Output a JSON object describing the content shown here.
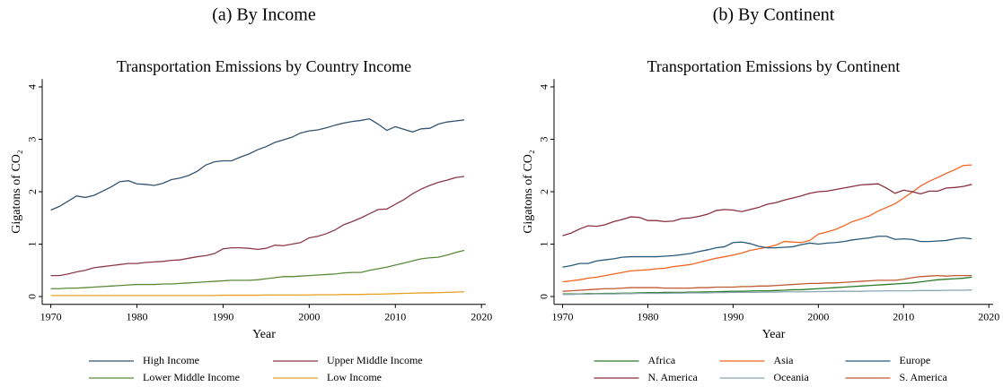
{
  "chart_data": [
    {
      "type": "line",
      "caption": "(a) By Income",
      "title": "Transportation Emissions by Country Income",
      "xlabel": "Year",
      "ylabel": "Gigatons of CO₂",
      "x": [
        1970,
        1971,
        1972,
        1973,
        1974,
        1975,
        1976,
        1977,
        1978,
        1979,
        1980,
        1981,
        1982,
        1983,
        1984,
        1985,
        1986,
        1987,
        1988,
        1989,
        1990,
        1991,
        1992,
        1993,
        1994,
        1995,
        1996,
        1997,
        1998,
        1999,
        2000,
        2001,
        2002,
        2003,
        2004,
        2005,
        2006,
        2007,
        2008,
        2009,
        2010,
        2011,
        2012,
        2013,
        2014,
        2015,
        2016,
        2017,
        2018
      ],
      "xlim": [
        1969,
        2020.5
      ],
      "xticks": [
        1970,
        1980,
        1990,
        2000,
        2010,
        2020
      ],
      "ylim": [
        -0.15,
        4.15
      ],
      "yticks": [
        0,
        1,
        2,
        3,
        4
      ],
      "grid": false,
      "legend": "bottom",
      "series": [
        {
          "name": "High Income",
          "color": "#34536e",
          "values": [
            1.65,
            1.72,
            1.82,
            1.92,
            1.89,
            1.93,
            2.01,
            2.09,
            2.19,
            2.21,
            2.15,
            2.14,
            2.12,
            2.16,
            2.23,
            2.26,
            2.31,
            2.39,
            2.51,
            2.57,
            2.59,
            2.59,
            2.66,
            2.72,
            2.8,
            2.86,
            2.94,
            2.99,
            3.04,
            3.12,
            3.16,
            3.18,
            3.22,
            3.27,
            3.31,
            3.34,
            3.36,
            3.39,
            3.29,
            3.17,
            3.24,
            3.19,
            3.14,
            3.2,
            3.21,
            3.29,
            3.33,
            3.35,
            3.37
          ]
        },
        {
          "name": "Upper Middle Income",
          "color": "#8c3a4a",
          "values": [
            0.4,
            0.4,
            0.43,
            0.47,
            0.5,
            0.55,
            0.57,
            0.59,
            0.61,
            0.63,
            0.63,
            0.65,
            0.66,
            0.67,
            0.69,
            0.7,
            0.73,
            0.76,
            0.78,
            0.82,
            0.91,
            0.93,
            0.93,
            0.92,
            0.9,
            0.92,
            0.98,
            0.97,
            1.0,
            1.03,
            1.12,
            1.15,
            1.2,
            1.27,
            1.37,
            1.43,
            1.5,
            1.58,
            1.66,
            1.67,
            1.76,
            1.85,
            1.96,
            2.05,
            2.12,
            2.18,
            2.22,
            2.27,
            2.29
          ]
        },
        {
          "name": "Lower Middle Income",
          "color": "#5a8a3a",
          "values": [
            0.15,
            0.15,
            0.16,
            0.16,
            0.17,
            0.18,
            0.19,
            0.2,
            0.21,
            0.22,
            0.23,
            0.23,
            0.23,
            0.24,
            0.24,
            0.25,
            0.26,
            0.27,
            0.28,
            0.29,
            0.3,
            0.31,
            0.31,
            0.31,
            0.32,
            0.34,
            0.36,
            0.38,
            0.38,
            0.39,
            0.4,
            0.41,
            0.42,
            0.43,
            0.45,
            0.46,
            0.46,
            0.5,
            0.53,
            0.56,
            0.6,
            0.64,
            0.68,
            0.72,
            0.74,
            0.75,
            0.79,
            0.84,
            0.88
          ]
        },
        {
          "name": "Low Income",
          "color": "#e8a020",
          "values": [
            0.02,
            0.02,
            0.02,
            0.02,
            0.02,
            0.02,
            0.02,
            0.02,
            0.02,
            0.02,
            0.02,
            0.02,
            0.02,
            0.02,
            0.02,
            0.02,
            0.02,
            0.02,
            0.02,
            0.02,
            0.025,
            0.025,
            0.025,
            0.025,
            0.025,
            0.03,
            0.03,
            0.03,
            0.03,
            0.03,
            0.03,
            0.035,
            0.035,
            0.035,
            0.04,
            0.04,
            0.04,
            0.045,
            0.045,
            0.05,
            0.055,
            0.06,
            0.065,
            0.07,
            0.07,
            0.075,
            0.08,
            0.085,
            0.09
          ]
        }
      ]
    },
    {
      "type": "line",
      "caption": "(b) By Continent",
      "title": "Transportation Emissions by Continent",
      "xlabel": "Year",
      "ylabel": "Gigatons of CO₂",
      "x": [
        1970,
        1971,
        1972,
        1973,
        1974,
        1975,
        1976,
        1977,
        1978,
        1979,
        1980,
        1981,
        1982,
        1983,
        1984,
        1985,
        1986,
        1987,
        1988,
        1989,
        1990,
        1991,
        1992,
        1993,
        1994,
        1995,
        1996,
        1997,
        1998,
        1999,
        2000,
        2001,
        2002,
        2003,
        2004,
        2005,
        2006,
        2007,
        2008,
        2009,
        2010,
        2011,
        2012,
        2013,
        2014,
        2015,
        2016,
        2017,
        2018
      ],
      "xlim": [
        1969,
        2020.5
      ],
      "xticks": [
        1970,
        1980,
        1990,
        2000,
        2010,
        2020
      ],
      "ylim": [
        -0.15,
        4.15
      ],
      "yticks": [
        0,
        1,
        2,
        3,
        4
      ],
      "grid": false,
      "legend": "bottom",
      "series": [
        {
          "name": "Africa",
          "color": "#2a7a2a",
          "values": [
            0.05,
            0.05,
            0.05,
            0.055,
            0.055,
            0.06,
            0.06,
            0.065,
            0.065,
            0.07,
            0.075,
            0.075,
            0.08,
            0.08,
            0.08,
            0.085,
            0.085,
            0.09,
            0.09,
            0.095,
            0.1,
            0.1,
            0.105,
            0.11,
            0.11,
            0.115,
            0.12,
            0.13,
            0.13,
            0.14,
            0.15,
            0.16,
            0.17,
            0.18,
            0.19,
            0.2,
            0.21,
            0.22,
            0.23,
            0.24,
            0.25,
            0.26,
            0.28,
            0.3,
            0.32,
            0.33,
            0.34,
            0.35,
            0.37
          ]
        },
        {
          "name": "Asia",
          "color": "#f26522",
          "values": [
            0.28,
            0.3,
            0.32,
            0.35,
            0.37,
            0.4,
            0.43,
            0.46,
            0.49,
            0.5,
            0.51,
            0.53,
            0.54,
            0.57,
            0.59,
            0.61,
            0.65,
            0.69,
            0.73,
            0.76,
            0.79,
            0.83,
            0.88,
            0.91,
            0.94,
            0.98,
            1.05,
            1.04,
            1.03,
            1.07,
            1.19,
            1.23,
            1.28,
            1.35,
            1.43,
            1.48,
            1.54,
            1.63,
            1.7,
            1.77,
            1.88,
            1.99,
            2.11,
            2.2,
            2.27,
            2.35,
            2.42,
            2.5,
            2.51
          ]
        },
        {
          "name": "Europe",
          "color": "#2a5a7a",
          "values": [
            0.56,
            0.59,
            0.63,
            0.63,
            0.68,
            0.7,
            0.72,
            0.75,
            0.76,
            0.76,
            0.76,
            0.76,
            0.77,
            0.78,
            0.8,
            0.82,
            0.86,
            0.89,
            0.93,
            0.95,
            1.03,
            1.04,
            1.01,
            0.96,
            0.93,
            0.93,
            0.94,
            0.95,
            0.99,
            1.02,
            1.0,
            1.02,
            1.03,
            1.05,
            1.08,
            1.1,
            1.12,
            1.15,
            1.15,
            1.09,
            1.1,
            1.09,
            1.05,
            1.05,
            1.06,
            1.07,
            1.1,
            1.12,
            1.1
          ]
        },
        {
          "name": "N. America",
          "color": "#8b2f3f",
          "values": [
            1.16,
            1.21,
            1.29,
            1.35,
            1.34,
            1.37,
            1.43,
            1.47,
            1.52,
            1.51,
            1.45,
            1.45,
            1.43,
            1.44,
            1.49,
            1.5,
            1.53,
            1.57,
            1.64,
            1.66,
            1.65,
            1.62,
            1.66,
            1.7,
            1.76,
            1.79,
            1.84,
            1.88,
            1.92,
            1.97,
            2.0,
            2.01,
            2.04,
            2.07,
            2.1,
            2.13,
            2.14,
            2.15,
            2.07,
            1.97,
            2.03,
            2.0,
            1.96,
            2.01,
            2.01,
            2.07,
            2.08,
            2.1,
            2.14
          ]
        },
        {
          "name": "Oceania",
          "color": "#8aa8b0",
          "values": [
            0.04,
            0.04,
            0.045,
            0.045,
            0.05,
            0.05,
            0.05,
            0.055,
            0.055,
            0.06,
            0.06,
            0.06,
            0.06,
            0.065,
            0.065,
            0.07,
            0.07,
            0.07,
            0.075,
            0.075,
            0.08,
            0.08,
            0.08,
            0.08,
            0.085,
            0.085,
            0.09,
            0.09,
            0.09,
            0.09,
            0.095,
            0.095,
            0.1,
            0.1,
            0.1,
            0.1,
            0.105,
            0.105,
            0.11,
            0.11,
            0.11,
            0.11,
            0.115,
            0.115,
            0.115,
            0.12,
            0.12,
            0.12,
            0.125
          ]
        },
        {
          "name": "S. America",
          "color": "#c05a30",
          "values": [
            0.1,
            0.11,
            0.12,
            0.13,
            0.14,
            0.15,
            0.15,
            0.16,
            0.17,
            0.17,
            0.17,
            0.17,
            0.16,
            0.16,
            0.16,
            0.16,
            0.17,
            0.17,
            0.18,
            0.18,
            0.18,
            0.19,
            0.19,
            0.2,
            0.2,
            0.21,
            0.22,
            0.23,
            0.24,
            0.25,
            0.25,
            0.26,
            0.26,
            0.27,
            0.28,
            0.29,
            0.3,
            0.31,
            0.31,
            0.31,
            0.33,
            0.36,
            0.38,
            0.39,
            0.4,
            0.39,
            0.4,
            0.4,
            0.4
          ]
        }
      ]
    }
  ]
}
